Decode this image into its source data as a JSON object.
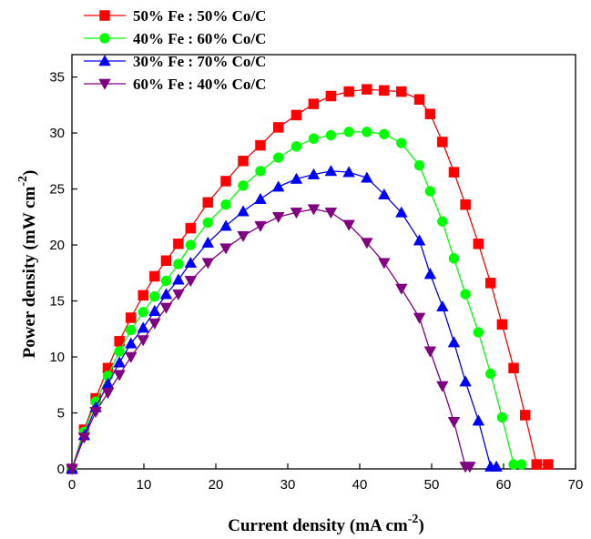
{
  "chart_data": {
    "type": "line",
    "title": "",
    "xlabel": {
      "main": "Current density (mA cm",
      "sup": "-2",
      "tail": ")"
    },
    "ylabel": {
      "main": "Power density (mW cm",
      "sup": "-2",
      "tail": ")"
    },
    "xlim": [
      0,
      70
    ],
    "ylim": [
      0,
      37
    ],
    "xticks": [
      0,
      10,
      20,
      30,
      40,
      50,
      60,
      70
    ],
    "yticks": [
      0,
      5,
      10,
      15,
      20,
      25,
      30,
      35
    ],
    "grid": false,
    "legend_position": "top-left",
    "series": [
      {
        "name": "50% Fe : 50% Co/C",
        "color": "#ff0000",
        "marker": "square",
        "x": [
          0,
          1.7,
          3.3,
          5.0,
          6.6,
          8.2,
          9.9,
          11.5,
          13.1,
          14.8,
          16.5,
          18.9,
          21.4,
          23.8,
          26.2,
          28.7,
          31.2,
          33.6,
          36.0,
          38.5,
          41.0,
          43.4,
          45.8,
          48.3,
          49.8,
          51.5,
          53.1,
          54.7,
          56.5,
          58.2,
          59.8,
          61.4,
          63.0,
          64.6,
          66.2
        ],
        "y": [
          0,
          3.5,
          6.3,
          9.0,
          11.4,
          13.5,
          15.5,
          17.2,
          18.6,
          20.1,
          21.5,
          23.8,
          25.7,
          27.5,
          28.9,
          30.5,
          31.6,
          32.6,
          33.3,
          33.7,
          33.9,
          33.8,
          33.7,
          33.0,
          31.7,
          29.2,
          26.5,
          23.6,
          20.1,
          16.6,
          12.9,
          9.0,
          4.8,
          0.4,
          0.4
        ]
      },
      {
        "name": "40% Fe : 60% Co/C",
        "color": "#00ff00",
        "marker": "circle",
        "x": [
          0,
          1.7,
          3.3,
          5.0,
          6.6,
          8.2,
          9.9,
          11.5,
          13.1,
          14.8,
          16.5,
          18.9,
          21.4,
          23.8,
          26.2,
          28.7,
          31.2,
          33.6,
          36.0,
          38.5,
          41.0,
          43.4,
          45.8,
          48.3,
          49.8,
          51.5,
          53.1,
          54.7,
          56.5,
          58.2,
          59.8,
          61.4,
          62.5
        ],
        "y": [
          0,
          3.3,
          6.0,
          8.3,
          10.5,
          12.4,
          14.0,
          15.4,
          16.8,
          18.3,
          20.0,
          22.0,
          23.6,
          25.3,
          26.6,
          27.8,
          28.8,
          29.5,
          29.8,
          30.1,
          30.1,
          29.9,
          29.1,
          27.1,
          24.8,
          22.1,
          18.8,
          15.6,
          12.2,
          8.5,
          4.6,
          0.4,
          0.4
        ]
      },
      {
        "name": "30% Fe : 70% Co/C",
        "color": "#0000ff",
        "marker": "triangle-up",
        "x": [
          0,
          1.7,
          3.3,
          5.0,
          6.6,
          8.2,
          9.9,
          11.5,
          13.1,
          14.8,
          16.5,
          18.9,
          21.4,
          23.8,
          26.2,
          28.7,
          31.2,
          33.6,
          36.0,
          38.5,
          41.0,
          43.4,
          45.8,
          48.3,
          49.8,
          51.5,
          53.1,
          54.7,
          56.5,
          58.2,
          59.0
        ],
        "y": [
          0,
          3.0,
          5.5,
          7.6,
          9.5,
          11.2,
          12.6,
          14.1,
          15.6,
          16.9,
          18.4,
          20.2,
          21.7,
          23.0,
          24.1,
          25.2,
          25.9,
          26.3,
          26.6,
          26.5,
          26.0,
          24.5,
          22.9,
          20.4,
          17.4,
          14.5,
          11.3,
          7.8,
          4.3,
          0.2,
          0.2
        ]
      },
      {
        "name": "60% Fe : 40% Co/C",
        "color": "#800080",
        "marker": "triangle-down",
        "x": [
          0,
          1.7,
          3.3,
          5.0,
          6.6,
          8.2,
          9.9,
          11.5,
          13.1,
          14.8,
          16.5,
          18.9,
          21.4,
          23.8,
          26.2,
          28.7,
          31.2,
          33.6,
          36.0,
          38.5,
          41.0,
          43.4,
          45.8,
          48.3,
          49.8,
          51.5,
          53.1,
          54.7,
          55.3
        ],
        "y": [
          0,
          2.8,
          5.1,
          6.8,
          8.4,
          10.0,
          11.5,
          13.0,
          14.4,
          15.6,
          16.8,
          18.4,
          19.7,
          20.8,
          21.7,
          22.5,
          22.9,
          23.2,
          22.9,
          21.8,
          20.2,
          18.4,
          16.1,
          13.5,
          10.5,
          7.4,
          4.2,
          0.2,
          0.2
        ]
      }
    ]
  }
}
